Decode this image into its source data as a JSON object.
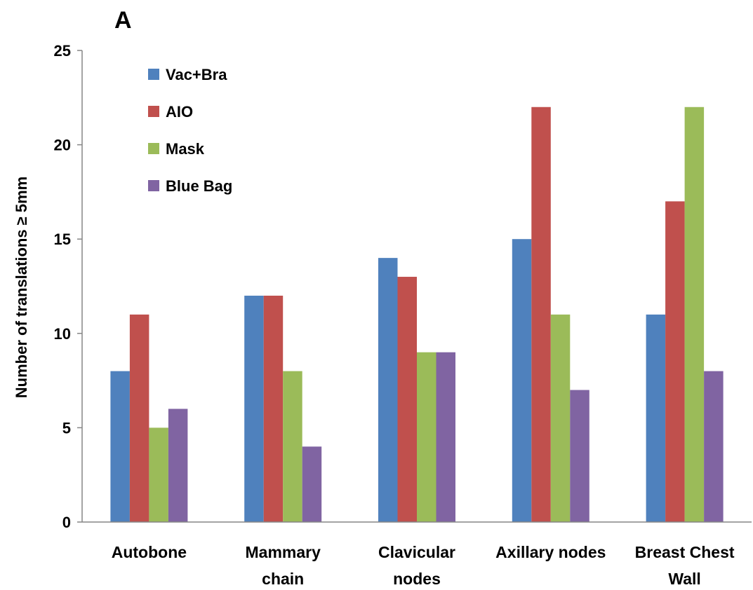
{
  "chart_data": {
    "type": "bar",
    "panel_label": "A",
    "title": "",
    "xlabel": "",
    "ylabel": "Number of translations ≥ 5mm",
    "ylim": [
      0,
      25
    ],
    "yticks": [
      "0",
      "5",
      "10",
      "15",
      "20",
      "25"
    ],
    "grid": false,
    "legend_position": "top-left",
    "categories": [
      [
        "Autobone"
      ],
      [
        "Mammary",
        "chain"
      ],
      [
        "Clavicular",
        "nodes"
      ],
      [
        "Axillary nodes"
      ],
      [
        "Breast Chest",
        "Wall"
      ]
    ],
    "series": [
      {
        "name": "Vac+Bra",
        "color": "#4f81bd",
        "values": [
          8,
          12,
          14,
          15,
          11
        ]
      },
      {
        "name": "AIO",
        "color": "#c0504d",
        "values": [
          11,
          12,
          13,
          22,
          17
        ]
      },
      {
        "name": "Mask",
        "color": "#9bbb59",
        "values": [
          5,
          8,
          9,
          11,
          22
        ]
      },
      {
        "name": "Blue Bag",
        "color": "#8064a2",
        "values": [
          6,
          4,
          9,
          7,
          8
        ]
      }
    ]
  }
}
